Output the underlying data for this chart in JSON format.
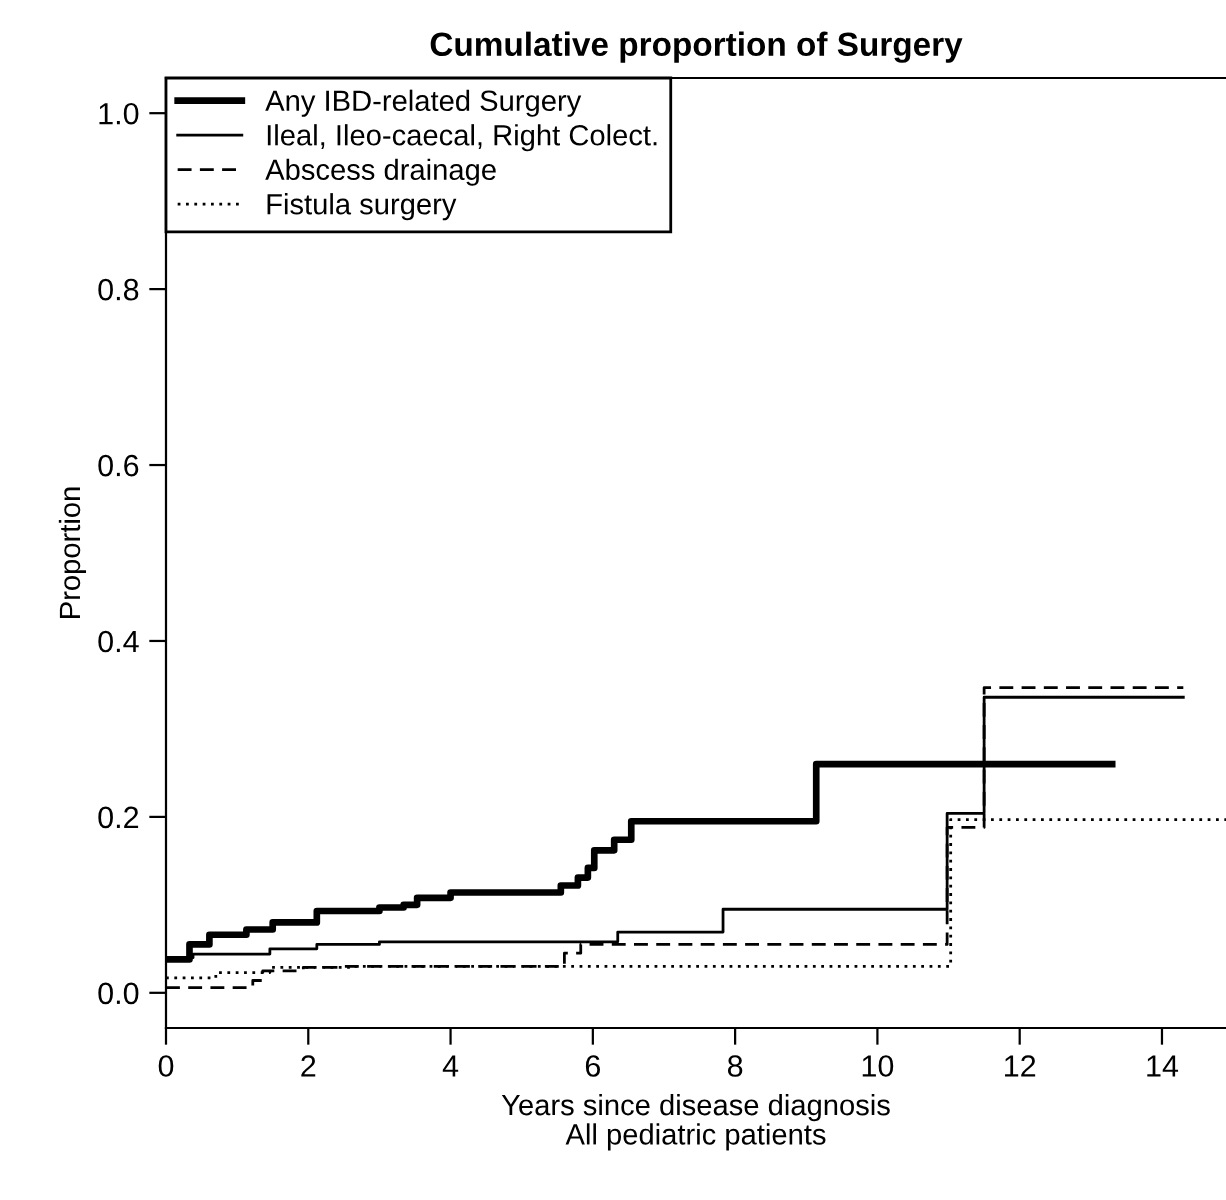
{
  "chart_data": {
    "type": "step",
    "title": "Cumulative proportion of Surgery",
    "xlabel": "Years since disease diagnosis\nAll pediatric patients",
    "ylabel": "Proportion",
    "xlim": [
      0,
      14.9
    ],
    "ylim": [
      -0.04,
      1.04
    ],
    "xticks": [
      0,
      2,
      4,
      6,
      8,
      10,
      12,
      14
    ],
    "yticks": [
      {
        "value": 0,
        "label": "0.0"
      },
      {
        "value": 0.2,
        "label": "0.2"
      },
      {
        "value": 0.4,
        "label": "0.4"
      },
      {
        "value": 0.6,
        "label": "0.6"
      },
      {
        "value": 0.8,
        "label": "0.8"
      },
      {
        "value": 1,
        "label": "1.0"
      }
    ],
    "legend": "top left",
    "grid": false,
    "series": [
      {
        "name": "Any IBD-related Surgery",
        "color": "#000000",
        "line_style": "solid",
        "x": [
          0,
          0.33,
          0.61,
          1.13,
          1.5,
          2.12,
          3.0,
          3.34,
          3.53,
          4.0,
          5.55,
          5.79,
          5.93,
          6.02,
          6.3,
          6.54,
          9.14,
          13.3
        ],
        "values": [
          0.038,
          0.055,
          0.066,
          0.072,
          0.08,
          0.093,
          0.097,
          0.1,
          0.108,
          0.114,
          0.122,
          0.131,
          0.142,
          0.162,
          0.174,
          0.195,
          0.26,
          0.26
        ]
      },
      {
        "name": "Ileal, Ileo-caecal, Right Colect.",
        "color": "#000000",
        "line_style": "solid",
        "x": [
          0,
          0.38,
          1.46,
          2.12,
          3.0,
          6.35,
          7.83,
          10.98,
          11.5,
          14.3
        ],
        "values": [
          0.04,
          0.044,
          0.05,
          0.055,
          0.058,
          0.069,
          0.095,
          0.204,
          0.336,
          0.336
        ]
      },
      {
        "name": "Abscess drainage",
        "color": "#000000",
        "line_style": "dashed",
        "x": [
          0,
          1.22,
          1.36,
          1.93,
          2.5,
          5.6,
          5.83,
          10.98,
          11.5,
          14.3
        ],
        "values": [
          0.006,
          0.014,
          0.025,
          0.029,
          0.03,
          0.045,
          0.055,
          0.188,
          0.347,
          0.347
        ]
      },
      {
        "name": "Fistula surgery",
        "color": "#000000",
        "line_style": "dotted",
        "x": [
          0,
          0.7,
          1.46,
          2.6,
          11.03,
          14.9
        ],
        "values": [
          0.017,
          0.023,
          0.029,
          0.03,
          0.197,
          0.197
        ]
      }
    ]
  }
}
